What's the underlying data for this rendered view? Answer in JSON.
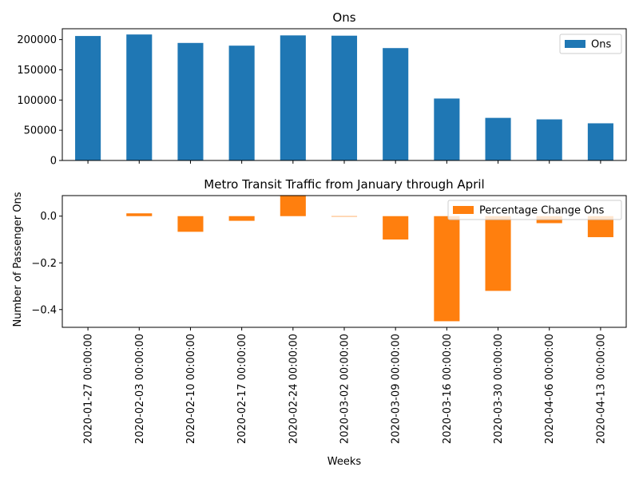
{
  "chart_data": [
    {
      "type": "bar",
      "title": "Ons",
      "categories": [
        "2020-01-27 00:00:00",
        "2020-02-03 00:00:00",
        "2020-02-10 00:00:00",
        "2020-02-17 00:00:00",
        "2020-02-24 00:00:00",
        "2020-03-02 00:00:00",
        "2020-03-09 00:00:00",
        "2020-03-16 00:00:00",
        "2020-03-30 00:00:00",
        "2020-04-06 00:00:00",
        "2020-04-13 00:00:00"
      ],
      "series": [
        {
          "name": "Ons",
          "color": "#1f77b4",
          "values": [
            206000,
            208500,
            194500,
            190000,
            207000,
            206500,
            186000,
            102500,
            70500,
            68000,
            61500
          ]
        }
      ],
      "ylim": [
        0,
        218000
      ],
      "yticks": [
        0,
        50000,
        100000,
        150000,
        200000
      ],
      "ytick_labels": [
        "0",
        "50000",
        "100000",
        "150000",
        "200000"
      ],
      "legend": "top-right",
      "grid": false
    },
    {
      "type": "bar",
      "title": "Metro Transit Traffic from January through April",
      "xlabel": "Weeks",
      "ylabel": "Number of Passenger Ons",
      "categories": [
        "2020-01-27 00:00:00",
        "2020-02-03 00:00:00",
        "2020-02-10 00:00:00",
        "2020-02-17 00:00:00",
        "2020-02-24 00:00:00",
        "2020-03-02 00:00:00",
        "2020-03-09 00:00:00",
        "2020-03-16 00:00:00",
        "2020-03-30 00:00:00",
        "2020-04-06 00:00:00",
        "2020-04-13 00:00:00"
      ],
      "series": [
        {
          "name": "Percentage Change Ons",
          "color": "#ff7f0e",
          "values": [
            0,
            0.012,
            -0.067,
            -0.02,
            0.09,
            -0.002,
            -0.1,
            -0.45,
            -0.32,
            -0.03,
            -0.09
          ]
        }
      ],
      "ylim": [
        -0.476,
        0.088
      ],
      "yticks": [
        -0.4,
        -0.2,
        0.0
      ],
      "ytick_labels": [
        "−0.4",
        "−0.2",
        "0.0"
      ],
      "legend": "top-right",
      "grid": false
    }
  ]
}
